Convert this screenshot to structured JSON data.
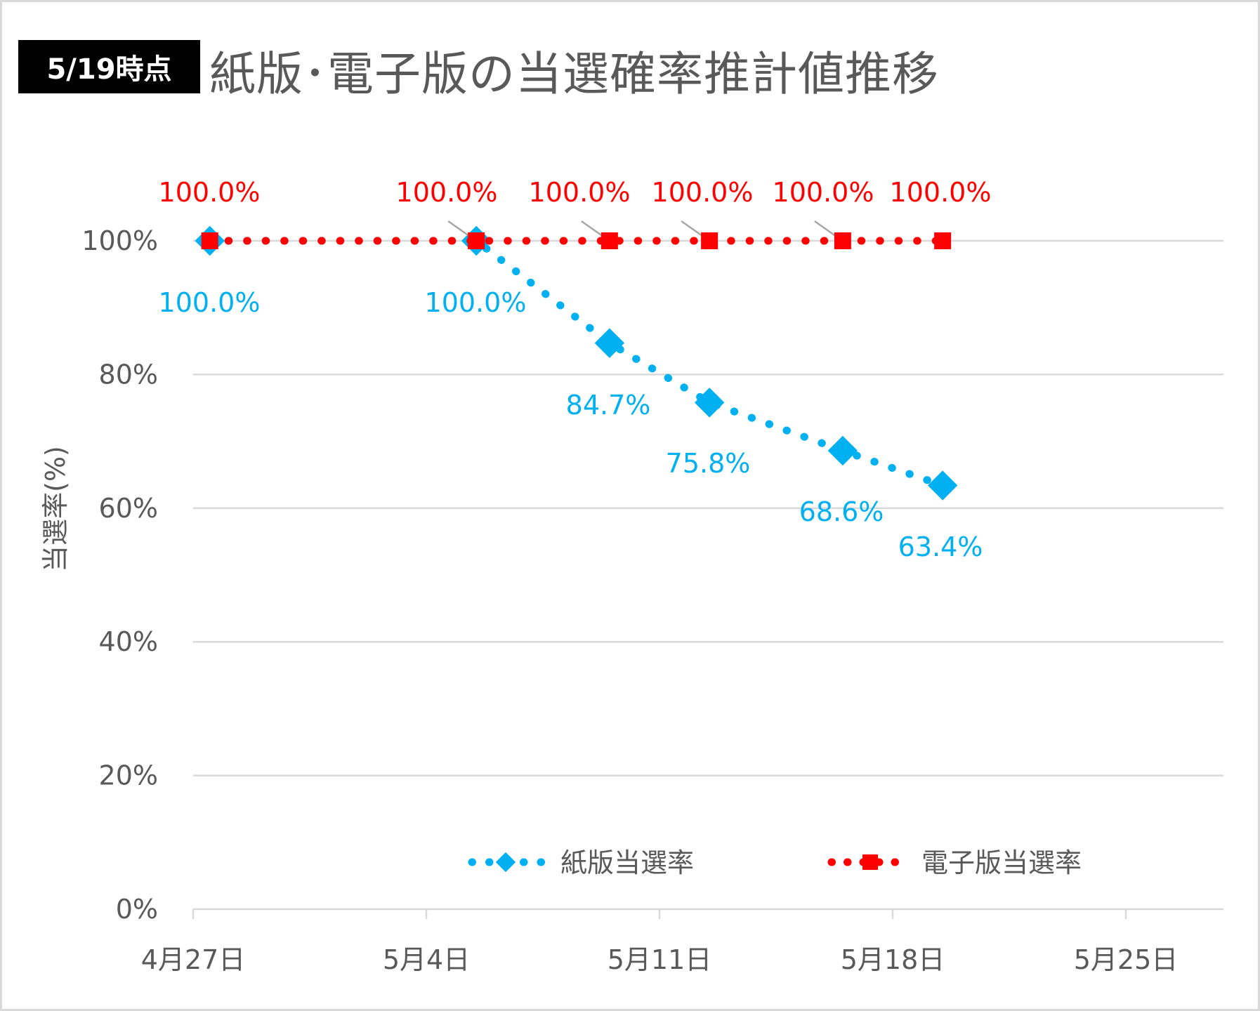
{
  "badge": "5/19時点",
  "chart_data": {
    "type": "line",
    "title": "紙版･電子版の当選確率推計値推移",
    "ylabel": "当選率(%)",
    "xlabel": "",
    "ylim": [
      0,
      100
    ],
    "yticks": [
      "0%",
      "20%",
      "40%",
      "60%",
      "80%",
      "100%"
    ],
    "xticks": [
      "4月27日",
      "5月4日",
      "5月11日",
      "5月18日",
      "5月25日"
    ],
    "xtick_days": [
      0,
      7,
      14,
      21,
      28
    ],
    "grid": true,
    "legend_position": "bottom-center",
    "series": [
      {
        "name": "紙版当選率",
        "color": "#00b0f0",
        "marker": "diamond",
        "x_days": [
          0.5,
          8.5,
          12.5,
          15.5,
          19.5,
          22.5
        ],
        "values": [
          100.0,
          100.0,
          84.7,
          75.8,
          68.6,
          63.4
        ],
        "labels": [
          "100.0%",
          "100.0%",
          "84.7%",
          "75.8%",
          "68.6%",
          "63.4%"
        ]
      },
      {
        "name": "電子版当選率",
        "color": "#ff0000",
        "marker": "square",
        "x_days": [
          0.5,
          8.5,
          12.5,
          15.5,
          19.5,
          22.5
        ],
        "values": [
          100.0,
          100.0,
          100.0,
          100.0,
          100.0,
          100.0
        ],
        "labels": [
          "100.0%",
          "100.0%",
          "100.0%",
          "100.0%",
          "100.0%",
          "100.0%"
        ]
      }
    ]
  }
}
